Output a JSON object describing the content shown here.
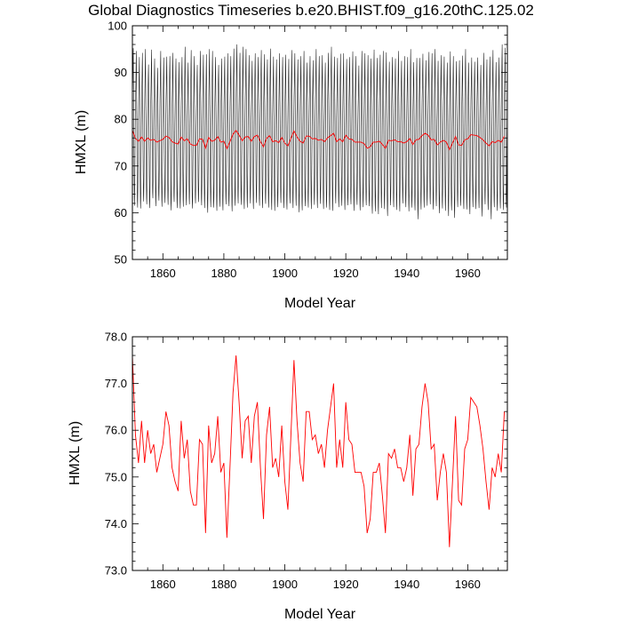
{
  "page": {
    "title": "Global Diagnostics Timeseries b.e20.BHIST.f09_g16.20thC.125.02"
  },
  "chart_data": [
    {
      "type": "line",
      "title": "Global Diagnostics Timeseries b.e20.BHIST.f09_g16.20thC.125.02",
      "xlabel": "Model Year",
      "ylabel": "HMXL (m)",
      "xlim": [
        1850,
        1973
      ],
      "ylim": [
        50,
        100
      ],
      "xticks": [
        1860,
        1880,
        1900,
        1920,
        1940,
        1960
      ],
      "xtick_labels": [
        "1860",
        "1880",
        "1900",
        "1920",
        "1940",
        "1960"
      ],
      "yticks": [
        50,
        60,
        70,
        80,
        90,
        100
      ],
      "ytick_labels": [
        "50",
        "60",
        "70",
        "80",
        "90",
        "100"
      ],
      "grid": false,
      "monthly": {
        "color": "#000000",
        "annual_max": [
          95.2,
          94.6,
          93.3,
          94.2,
          95.0,
          91.7,
          94.9,
          93.0,
          91.0,
          94.6,
          93.2,
          93.4,
          93.5,
          94.2,
          93.0,
          92.2,
          93.3,
          95.5,
          92.1,
          94.8,
          93.5,
          91.6,
          94.6,
          93.8,
          93.9,
          95.0,
          94.6,
          93.3,
          91.6,
          93.0,
          93.4,
          94.1,
          93.5,
          95.1,
          96.0,
          94.2,
          95.5,
          95.0,
          93.7,
          92.5,
          94.1,
          93.3,
          94.8,
          93.9,
          92.8,
          95.1,
          93.4,
          92.8,
          94.1,
          93.3,
          93.8,
          92.9,
          94.8,
          94.1,
          92.8,
          93.5,
          94.6,
          92.1,
          93.5,
          92.6,
          95.0,
          93.5,
          93.7,
          92.1,
          94.2,
          95.5,
          93.4,
          93.1,
          94.0,
          94.1,
          92.9,
          93.3,
          94.5,
          93.5,
          91.5,
          94.6,
          94.1,
          93.7,
          93.0,
          94.9,
          93.1,
          93.8,
          94.6,
          94.3,
          92.3,
          93.3,
          93.0,
          94.6,
          92.5,
          93.5,
          93.3,
          95.0,
          92.2,
          93.1,
          93.1,
          94.0,
          92.6,
          94.4,
          94.1,
          95.0,
          92.5,
          93.7,
          93.4,
          92.1,
          94.5,
          93.5,
          92.4,
          92.6,
          93.6,
          95.0,
          92.1,
          93.2,
          92.3,
          93.2,
          91.6,
          94.2,
          92.8,
          93.4,
          94.8,
          92.2,
          93.2,
          96.0,
          95.3
        ],
        "annual_min": [
          61.5,
          61.1,
          60.9,
          62.4,
          61.8,
          61.0,
          63.1,
          61.4,
          62.6,
          61.3,
          62.1,
          61.7,
          60.5,
          62.3,
          61.0,
          60.9,
          61.3,
          61.6,
          61.8,
          60.9,
          62.0,
          62.3,
          61.6,
          61.0,
          60.0,
          61.2,
          61.1,
          60.4,
          61.3,
          60.5,
          61.8,
          61.4,
          60.3,
          61.5,
          62.0,
          61.7,
          60.8,
          61.1,
          62.0,
          60.8,
          62.1,
          61.5,
          61.0,
          61.9,
          61.1,
          60.6,
          60.4,
          61.2,
          62.1,
          61.0,
          60.7,
          62.0,
          61.0,
          61.5,
          60.1,
          60.5,
          61.4,
          61.1,
          60.8,
          61.7,
          61.0,
          61.9,
          60.8,
          61.1,
          60.6,
          60.4,
          62.0,
          61.2,
          61.5,
          60.6,
          61.6,
          61.8,
          60.4,
          61.7,
          60.5,
          61.2,
          61.6,
          61.4,
          59.8,
          60.3,
          59.7,
          61.0,
          60.8,
          59.3,
          61.6,
          61.2,
          60.6,
          60.3,
          62.0,
          61.2,
          60.3,
          61.1,
          60.5,
          58.6,
          60.7,
          61.1,
          61.5,
          61.8,
          60.7,
          61.4,
          59.9,
          60.9,
          60.4,
          59.3,
          60.5,
          58.9,
          61.2,
          61.5,
          60.8,
          60.7,
          59.7,
          61.2,
          60.8,
          61.0,
          59.2,
          61.8,
          60.6,
          58.6,
          61.2,
          60.4,
          60.9,
          60.6,
          61.1
        ]
      },
      "series": [
        {
          "color": "#ff0000",
          "x": [
            1850,
            1851,
            1852,
            1853,
            1854,
            1855,
            1856,
            1857,
            1858,
            1859,
            1860,
            1861,
            1862,
            1863,
            1864,
            1865,
            1866,
            1867,
            1868,
            1869,
            1870,
            1871,
            1872,
            1873,
            1874,
            1875,
            1876,
            1877,
            1878,
            1879,
            1880,
            1881,
            1882,
            1883,
            1884,
            1885,
            1886,
            1887,
            1888,
            1889,
            1890,
            1891,
            1892,
            1893,
            1894,
            1895,
            1896,
            1897,
            1898,
            1899,
            1900,
            1901,
            1902,
            1903,
            1904,
            1905,
            1906,
            1907,
            1908,
            1909,
            1910,
            1911,
            1912,
            1913,
            1914,
            1915,
            1916,
            1917,
            1918,
            1919,
            1920,
            1921,
            1922,
            1923,
            1924,
            1925,
            1926,
            1927,
            1928,
            1929,
            1930,
            1931,
            1932,
            1933,
            1934,
            1935,
            1936,
            1937,
            1938,
            1939,
            1940,
            1941,
            1942,
            1943,
            1944,
            1945,
            1946,
            1947,
            1948,
            1949,
            1950,
            1951,
            1952,
            1953,
            1954,
            1955,
            1956,
            1957,
            1958,
            1959,
            1960,
            1961,
            1962,
            1963,
            1964,
            1965,
            1966,
            1967,
            1968,
            1969,
            1970,
            1971,
            1972
          ],
          "values": [
            77.6,
            75.9,
            75.3,
            76.2,
            75.3,
            76.0,
            75.5,
            75.7,
            75.1,
            75.4,
            75.7,
            76.4,
            76.1,
            75.2,
            74.9,
            74.7,
            76.2,
            75.4,
            75.8,
            74.7,
            74.4,
            74.4,
            75.8,
            75.7,
            73.8,
            76.1,
            75.3,
            75.5,
            76.3,
            75.1,
            75.3,
            73.7,
            75.2,
            76.8,
            77.6,
            76.6,
            75.4,
            76.2,
            76.3,
            75.3,
            76.3,
            76.6,
            75.2,
            74.1,
            75.9,
            76.5,
            75.2,
            75.4,
            75.0,
            76.1,
            74.9,
            74.3,
            75.9,
            77.5,
            76.2,
            75.3,
            74.9,
            76.4,
            76.4,
            75.8,
            75.9,
            75.5,
            75.7,
            75.2,
            76.0,
            76.5,
            77.0,
            75.2,
            75.8,
            75.2,
            76.6,
            75.8,
            75.7,
            75.1,
            75.1,
            75.1,
            74.8,
            73.8,
            74.1,
            75.1,
            75.1,
            75.3,
            74.6,
            73.8,
            75.5,
            75.4,
            75.6,
            75.2,
            75.2,
            74.9,
            75.2,
            75.9,
            74.6,
            75.6,
            75.7,
            76.5,
            77.0,
            76.6,
            75.6,
            75.7,
            74.5,
            75.1,
            75.5,
            75.1,
            73.5,
            74.9,
            76.3,
            74.5,
            74.4,
            75.6,
            75.8,
            76.7,
            76.6,
            76.5,
            76.1,
            75.6,
            74.9,
            74.3,
            75.2,
            75.0,
            75.5,
            75.1,
            76.4
          ]
        }
      ]
    },
    {
      "type": "line",
      "title": "",
      "xlabel": "Model Year",
      "ylabel": "HMXL (m)",
      "xlim": [
        1850,
        1973
      ],
      "ylim": [
        73,
        78
      ],
      "xticks": [
        1860,
        1880,
        1900,
        1920,
        1940,
        1960
      ],
      "xtick_labels": [
        "1860",
        "1880",
        "1900",
        "1920",
        "1940",
        "1960"
      ],
      "yticks": [
        73,
        74,
        75,
        76,
        77,
        78
      ],
      "ytick_labels": [
        "73.0",
        "74.0",
        "75.0",
        "76.0",
        "77.0",
        "78.0"
      ],
      "grid": false,
      "series": [
        {
          "color": "#ff0000",
          "x": [
            1850,
            1851,
            1852,
            1853,
            1854,
            1855,
            1856,
            1857,
            1858,
            1859,
            1860,
            1861,
            1862,
            1863,
            1864,
            1865,
            1866,
            1867,
            1868,
            1869,
            1870,
            1871,
            1872,
            1873,
            1874,
            1875,
            1876,
            1877,
            1878,
            1879,
            1880,
            1881,
            1882,
            1883,
            1884,
            1885,
            1886,
            1887,
            1888,
            1889,
            1890,
            1891,
            1892,
            1893,
            1894,
            1895,
            1896,
            1897,
            1898,
            1899,
            1900,
            1901,
            1902,
            1903,
            1904,
            1905,
            1906,
            1907,
            1908,
            1909,
            1910,
            1911,
            1912,
            1913,
            1914,
            1915,
            1916,
            1917,
            1918,
            1919,
            1920,
            1921,
            1922,
            1923,
            1924,
            1925,
            1926,
            1927,
            1928,
            1929,
            1930,
            1931,
            1932,
            1933,
            1934,
            1935,
            1936,
            1937,
            1938,
            1939,
            1940,
            1941,
            1942,
            1943,
            1944,
            1945,
            1946,
            1947,
            1948,
            1949,
            1950,
            1951,
            1952,
            1953,
            1954,
            1955,
            1956,
            1957,
            1958,
            1959,
            1960,
            1961,
            1962,
            1963,
            1964,
            1965,
            1966,
            1967,
            1968,
            1969,
            1970,
            1971,
            1972
          ],
          "values": [
            77.6,
            75.9,
            75.3,
            76.2,
            75.3,
            76.0,
            75.5,
            75.7,
            75.1,
            75.4,
            75.7,
            76.4,
            76.1,
            75.2,
            74.9,
            74.7,
            76.2,
            75.4,
            75.8,
            74.7,
            74.4,
            74.4,
            75.8,
            75.7,
            73.8,
            76.1,
            75.3,
            75.5,
            76.3,
            75.1,
            75.3,
            73.7,
            75.2,
            76.8,
            77.6,
            76.6,
            75.4,
            76.2,
            76.3,
            75.3,
            76.3,
            76.6,
            75.2,
            74.1,
            75.9,
            76.5,
            75.2,
            75.4,
            75.0,
            76.1,
            74.9,
            74.3,
            75.9,
            77.5,
            76.2,
            75.3,
            74.9,
            76.4,
            76.4,
            75.8,
            75.9,
            75.5,
            75.7,
            75.2,
            76.0,
            76.5,
            77.0,
            75.2,
            75.8,
            75.2,
            76.6,
            75.8,
            75.7,
            75.1,
            75.1,
            75.1,
            74.8,
            73.8,
            74.1,
            75.1,
            75.1,
            75.3,
            74.6,
            73.8,
            75.5,
            75.4,
            75.6,
            75.2,
            75.2,
            74.9,
            75.2,
            75.9,
            74.6,
            75.6,
            75.7,
            76.5,
            77.0,
            76.6,
            75.6,
            75.7,
            74.5,
            75.1,
            75.5,
            75.1,
            73.5,
            74.9,
            76.3,
            74.5,
            74.4,
            75.6,
            75.8,
            76.7,
            76.6,
            76.5,
            76.1,
            75.6,
            74.9,
            74.3,
            75.2,
            75.0,
            75.5,
            75.1,
            76.4
          ]
        }
      ]
    }
  ]
}
